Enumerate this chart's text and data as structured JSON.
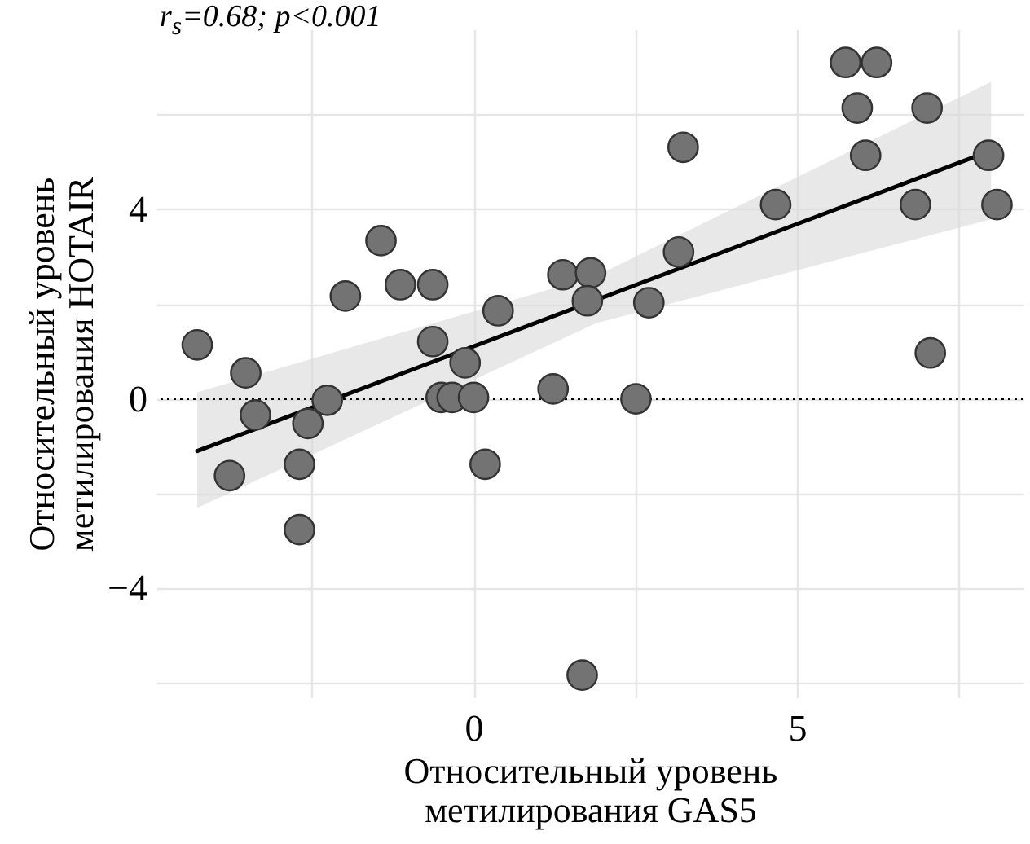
{
  "chart_data": {
    "type": "scatter",
    "xlabel": "Относительный уровень\nметилирования GAS5",
    "ylabel": "Относительный уровень\nметилирования HOTAIR",
    "annotations": [
      "r$_{s}$=0.68; p<0.001"
    ],
    "xlim": [
      -4.9,
      8.5
    ],
    "ylim": [
      -6.3,
      7.8
    ],
    "xticks": [
      {
        "value": -2.5,
        "label": null
      },
      0,
      {
        "value": 2.5,
        "label": null
      },
      5,
      {
        "value": 7.5,
        "label": null
      }
    ],
    "yticks": [
      {
        "value": -6,
        "label": null
      },
      {
        "value": -4,
        "label": "−4"
      },
      {
        "value": -2,
        "label": null
      },
      0,
      {
        "value": 2,
        "label": null
      },
      4,
      {
        "value": 6,
        "label": null
      }
    ],
    "grid": true,
    "ref_lines": [
      {
        "axis": "y",
        "value": 0,
        "label": null,
        "color": "#000000",
        "line_style": "dotted"
      }
    ],
    "series": [
      {
        "marker": "circle",
        "color": "#737373",
        "x": [
          -4.27,
          -3.52,
          -3.37,
          -3.77,
          -2.69,
          -2.69,
          -2.56,
          -2.26,
          -1.98,
          -1.43,
          -1.13,
          -0.63,
          -0.63,
          -0.5,
          -0.33,
          -0.13,
          0.0,
          0.38,
          0.18,
          1.23,
          1.38,
          1.81,
          1.76,
          1.68,
          3.24,
          2.71,
          3.17,
          2.51,
          4.67,
          5.75,
          6.23,
          5.93,
          6.06,
          7.01,
          6.83,
          7.06,
          7.96,
          8.09
        ],
        "values": [
          1.14,
          0.55,
          -0.34,
          -1.62,
          -1.38,
          -2.76,
          -0.52,
          -0.03,
          2.17,
          3.34,
          2.41,
          2.41,
          1.21,
          0.03,
          0.03,
          0.76,
          0.03,
          1.86,
          -1.38,
          0.21,
          2.62,
          2.66,
          2.07,
          -5.83,
          5.31,
          2.03,
          3.1,
          0.0,
          4.1,
          7.1,
          7.1,
          6.14,
          5.14,
          6.14,
          4.1,
          0.97,
          5.14,
          4.1
        ]
      },
      {
        "type": "line",
        "color": "#000000",
        "x": [
          -4.27,
          1.9,
          8.0
        ],
        "values": [
          -1.1,
          2.09,
          5.24
        ],
        "lower": [
          -2.3,
          1.6,
          3.79
        ],
        "upper": [
          0.14,
          2.6,
          6.69
        ]
      }
    ]
  }
}
